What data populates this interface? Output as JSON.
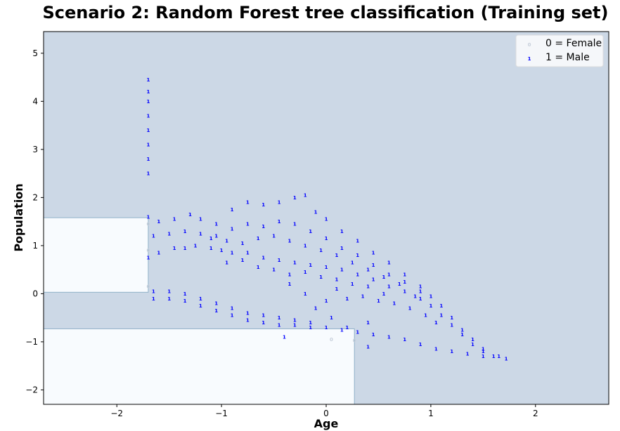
{
  "chart_data": {
    "type": "scatter",
    "title": "Scenario 2: Random Forest tree classification (Training set)",
    "xlabel": "Age",
    "ylabel": "Population",
    "xlim": [
      -2.7,
      2.7
    ],
    "ylim": [
      -2.3,
      5.45
    ],
    "xticks": [
      -2,
      -1,
      0,
      1,
      2
    ],
    "yticks": [
      -2,
      -1,
      0,
      1,
      2,
      3,
      4,
      5
    ],
    "xtick_labels": [
      "−2",
      "−1",
      "0",
      "1",
      "2"
    ],
    "ytick_labels": [
      "−2",
      "−1",
      "0",
      "1",
      "2",
      "3",
      "4",
      "5"
    ],
    "grid": false,
    "legend_position": "top-right",
    "legend": [
      {
        "marker": "0",
        "label": "0 = Female"
      },
      {
        "marker": "1",
        "label": "1 = Male"
      }
    ],
    "colors": {
      "male_region": "#ccd8e6",
      "female_region": "#f8fbfe",
      "region_border": "#8fb0c8",
      "male_points": "#0000ff",
      "female_points": "#c8d0dc"
    },
    "decision_regions": [
      {
        "class": 0,
        "x": [
          -2.7,
          -1.7
        ],
        "y": [
          0.03,
          1.58
        ]
      },
      {
        "class": 0,
        "x": [
          -2.7,
          0.27
        ],
        "y": [
          -2.3,
          -0.73
        ]
      }
    ],
    "series": [
      {
        "label": "1",
        "values": [
          [
            -1.7,
            2.5
          ],
          [
            -1.7,
            2.8
          ],
          [
            -1.7,
            3.1
          ],
          [
            -1.7,
            3.4
          ],
          [
            -1.7,
            3.7
          ],
          [
            -1.7,
            4.0
          ],
          [
            -1.7,
            4.2
          ],
          [
            -1.7,
            4.45
          ],
          [
            -1.7,
            0.75
          ],
          [
            -1.6,
            0.85
          ],
          [
            -1.45,
            0.95
          ],
          [
            -1.35,
            0.95
          ],
          [
            -1.25,
            1.0
          ],
          [
            -1.1,
            0.95
          ],
          [
            -1.0,
            0.9
          ],
          [
            -0.9,
            0.85
          ],
          [
            -0.75,
            0.85
          ],
          [
            -0.6,
            0.75
          ],
          [
            -0.45,
            0.7
          ],
          [
            -0.3,
            0.65
          ],
          [
            -0.15,
            0.6
          ],
          [
            0.0,
            0.55
          ],
          [
            0.15,
            0.5
          ],
          [
            0.3,
            0.4
          ],
          [
            0.45,
            0.3
          ],
          [
            0.6,
            0.15
          ],
          [
            0.75,
            0.05
          ],
          [
            0.9,
            -0.1
          ],
          [
            1.0,
            -0.25
          ],
          [
            1.1,
            -0.45
          ],
          [
            1.2,
            -0.65
          ],
          [
            1.3,
            -0.85
          ],
          [
            1.4,
            -1.05
          ],
          [
            1.5,
            -1.2
          ],
          [
            1.6,
            -1.3
          ],
          [
            1.72,
            -1.35
          ],
          [
            -1.7,
            1.6
          ],
          [
            -1.6,
            1.5
          ],
          [
            -1.45,
            1.55
          ],
          [
            -1.3,
            1.65
          ],
          [
            -1.2,
            1.55
          ],
          [
            -1.05,
            1.45
          ],
          [
            -0.9,
            1.75
          ],
          [
            -0.75,
            1.9
          ],
          [
            -0.6,
            1.85
          ],
          [
            -0.45,
            1.9
          ],
          [
            -0.3,
            2.0
          ],
          [
            -0.2,
            2.05
          ],
          [
            -0.1,
            1.7
          ],
          [
            0.0,
            1.55
          ],
          [
            0.15,
            1.3
          ],
          [
            0.3,
            1.1
          ],
          [
            0.45,
            0.85
          ],
          [
            0.6,
            0.65
          ],
          [
            0.75,
            0.4
          ],
          [
            0.9,
            0.15
          ],
          [
            1.0,
            -0.05
          ],
          [
            1.1,
            -0.25
          ],
          [
            1.2,
            -0.5
          ],
          [
            1.3,
            -0.75
          ],
          [
            1.4,
            -0.95
          ],
          [
            1.5,
            -1.15
          ],
          [
            -1.65,
            1.2
          ],
          [
            -1.5,
            1.25
          ],
          [
            -1.35,
            1.3
          ],
          [
            -1.2,
            1.25
          ],
          [
            -1.05,
            1.2
          ],
          [
            -0.9,
            1.35
          ],
          [
            -0.75,
            1.45
          ],
          [
            -0.6,
            1.4
          ],
          [
            -0.45,
            1.5
          ],
          [
            -0.3,
            1.45
          ],
          [
            -0.15,
            1.3
          ],
          [
            0.0,
            1.15
          ],
          [
            0.15,
            0.95
          ],
          [
            0.3,
            0.8
          ],
          [
            0.45,
            0.6
          ],
          [
            0.6,
            0.4
          ],
          [
            0.75,
            0.25
          ],
          [
            0.9,
            0.05
          ],
          [
            -1.65,
            -0.1
          ],
          [
            -1.5,
            -0.1
          ],
          [
            -1.35,
            -0.15
          ],
          [
            -1.2,
            -0.25
          ],
          [
            -1.05,
            -0.35
          ],
          [
            -0.9,
            -0.45
          ],
          [
            -0.75,
            -0.55
          ],
          [
            -0.6,
            -0.6
          ],
          [
            -0.45,
            -0.65
          ],
          [
            -0.3,
            -0.65
          ],
          [
            -0.15,
            -0.7
          ],
          [
            0.0,
            -0.7
          ],
          [
            0.15,
            -0.75
          ],
          [
            0.3,
            -0.8
          ],
          [
            0.45,
            -0.85
          ],
          [
            0.6,
            -0.9
          ],
          [
            0.75,
            -0.95
          ],
          [
            0.9,
            -1.05
          ],
          [
            1.05,
            -1.15
          ],
          [
            1.2,
            -1.2
          ],
          [
            1.35,
            -1.25
          ],
          [
            1.5,
            -1.3
          ],
          [
            1.65,
            -1.3
          ],
          [
            -1.65,
            0.05
          ],
          [
            -1.5,
            0.05
          ],
          [
            -1.35,
            0.0
          ],
          [
            -1.2,
            -0.1
          ],
          [
            -1.05,
            -0.2
          ],
          [
            -0.9,
            -0.3
          ],
          [
            -0.75,
            -0.4
          ],
          [
            -0.6,
            -0.45
          ],
          [
            -0.45,
            -0.5
          ],
          [
            -0.3,
            -0.55
          ],
          [
            -0.15,
            -0.6
          ],
          [
            -0.35,
            0.2
          ],
          [
            -0.2,
            0.0
          ],
          [
            -0.1,
            -0.3
          ],
          [
            0.0,
            -0.15
          ],
          [
            0.1,
            0.1
          ],
          [
            0.2,
            -0.1
          ],
          [
            0.35,
            -0.05
          ],
          [
            0.5,
            -0.15
          ],
          [
            0.65,
            -0.2
          ],
          [
            0.8,
            -0.3
          ],
          [
            0.95,
            -0.45
          ],
          [
            1.05,
            -0.6
          ],
          [
            -0.95,
            0.65
          ],
          [
            -0.8,
            0.7
          ],
          [
            -0.65,
            0.55
          ],
          [
            -0.5,
            0.5
          ],
          [
            -0.35,
            0.4
          ],
          [
            -0.2,
            0.45
          ],
          [
            -0.05,
            0.35
          ],
          [
            0.1,
            0.3
          ],
          [
            0.25,
            0.2
          ],
          [
            0.4,
            0.15
          ],
          [
            0.55,
            0.0
          ],
          [
            -1.1,
            1.15
          ],
          [
            -0.95,
            1.1
          ],
          [
            -0.8,
            1.05
          ],
          [
            -0.65,
            1.15
          ],
          [
            -0.5,
            1.2
          ],
          [
            -0.35,
            1.1
          ],
          [
            -0.2,
            1.0
          ],
          [
            -0.05,
            0.9
          ],
          [
            0.1,
            0.8
          ],
          [
            0.25,
            0.65
          ],
          [
            0.4,
            0.5
          ],
          [
            0.55,
            0.35
          ],
          [
            0.7,
            0.2
          ],
          [
            0.85,
            -0.05
          ],
          [
            -0.4,
            -0.9
          ],
          [
            0.05,
            -0.5
          ],
          [
            0.2,
            -0.7
          ],
          [
            0.4,
            -0.6
          ],
          [
            0.4,
            -1.1
          ]
        ]
      },
      {
        "label": "0",
        "values": [
          [
            -1.7,
            1.45
          ],
          [
            -1.7,
            0.15
          ],
          [
            -1.7,
            0.9
          ],
          [
            0.05,
            -0.95
          ],
          [
            0.27,
            -0.97
          ]
        ]
      }
    ]
  }
}
